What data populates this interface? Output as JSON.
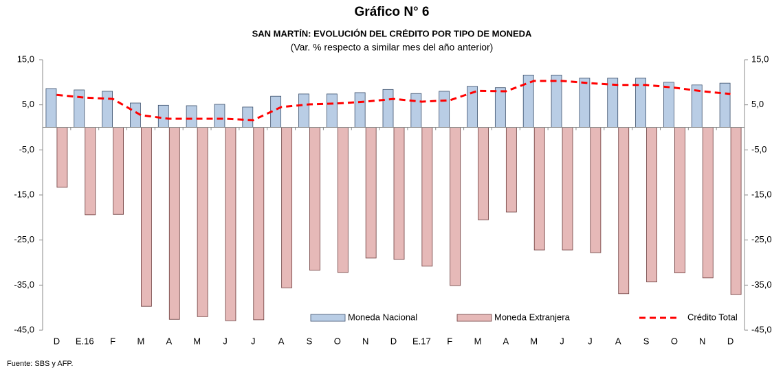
{
  "chart_data": {
    "type": "bar",
    "title": "Gráfico N° 6",
    "subtitle": "SAN MARTÍN: EVOLUCIÓN DEL CRÉDITO POR TIPO DE MONEDA",
    "note": "(Var. % respecto a similar mes del año anterior)",
    "source": "Fuente: SBS y AFP.",
    "categories": [
      "D",
      "E.16",
      "F",
      "M",
      "A",
      "M",
      "J",
      "J",
      "A",
      "S",
      "O",
      "N",
      "D",
      "E.17",
      "F",
      "M",
      "A",
      "M",
      "J",
      "J",
      "A",
      "S",
      "O",
      "N",
      "D"
    ],
    "series": [
      {
        "name": "Moneda Nacional",
        "type": "bar",
        "color": "#b9cde5",
        "values": [
          8.6,
          8.3,
          8.0,
          5.4,
          4.9,
          4.8,
          5.1,
          4.5,
          6.9,
          7.4,
          7.4,
          7.7,
          8.4,
          7.5,
          8.0,
          9.1,
          8.8,
          11.6,
          11.6,
          10.9,
          10.9,
          10.9,
          10.0,
          9.4,
          9.8
        ]
      },
      {
        "name": "Moneda Extranjera",
        "type": "bar",
        "color": "#e6b9b8",
        "values": [
          -13.3,
          -19.4,
          -19.3,
          -39.7,
          -42.6,
          -42.0,
          -42.9,
          -42.7,
          -35.6,
          -31.7,
          -32.2,
          -29.0,
          -29.3,
          -30.8,
          -35.1,
          -20.5,
          -18.8,
          -27.2,
          -27.2,
          -27.8,
          -36.9,
          -34.3,
          -32.3,
          -33.4,
          -37.1
        ]
      },
      {
        "name": "Crédito Total",
        "type": "line",
        "color": "#ff0000",
        "values": [
          7.2,
          6.6,
          6.3,
          2.7,
          1.9,
          1.9,
          1.9,
          1.6,
          4.5,
          5.1,
          5.3,
          5.7,
          6.3,
          5.7,
          6.0,
          8.1,
          8.0,
          10.3,
          10.3,
          9.8,
          9.4,
          9.4,
          8.8,
          8.0,
          7.4
        ]
      }
    ],
    "ylim": [
      -45,
      15
    ],
    "yticks": [
      {
        "value": 15,
        "label": "15,0"
      },
      {
        "value": 5,
        "label": "5,0"
      },
      {
        "value": -5,
        "label": "-5,0"
      },
      {
        "value": -15,
        "label": "-15,0"
      },
      {
        "value": -25,
        "label": "-25,0"
      },
      {
        "value": -35,
        "label": "-35,0"
      },
      {
        "value": -45,
        "label": "-45,0"
      }
    ],
    "y2lim": [
      -45,
      15
    ],
    "y2ticks": [
      {
        "value": 15,
        "label": "15,0"
      },
      {
        "value": 5,
        "label": "5,0"
      },
      {
        "value": -5,
        "label": "-5,0"
      },
      {
        "value": -15,
        "label": "-15,0"
      },
      {
        "value": -25,
        "label": "-25,0"
      },
      {
        "value": -35,
        "label": "-35,0"
      },
      {
        "value": -45,
        "label": "-45,0"
      }
    ],
    "legend": "bottom-right"
  }
}
